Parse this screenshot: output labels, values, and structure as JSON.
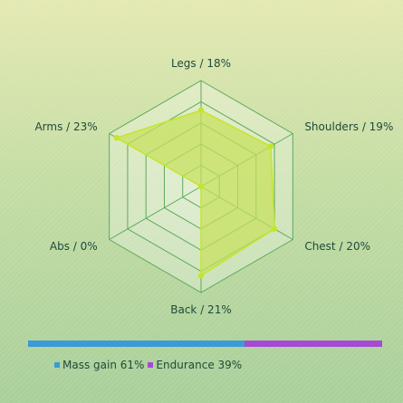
{
  "chart_data": [
    {
      "type": "radar",
      "axes": [
        "Legs / 18%",
        "Shoulders / 19%",
        "Chest / 20%",
        "Back / 21%",
        "Abs / 0%",
        "Arms / 23%"
      ],
      "values": [
        18,
        19,
        20,
        21,
        0,
        23
      ],
      "range": [
        0,
        25
      ],
      "rings": 5,
      "colors": {
        "fill": "#c6e05a",
        "stroke": "#c4e62a",
        "grid": "#5cab5c"
      }
    },
    {
      "type": "bar",
      "orientation": "stacked-horizontal",
      "series": [
        {
          "name": "Mass gain 61%",
          "value": 61,
          "color": "#3c9ad6"
        },
        {
          "name": "Endurance 39%",
          "value": 39,
          "color": "#a64ad4"
        }
      ]
    }
  ]
}
